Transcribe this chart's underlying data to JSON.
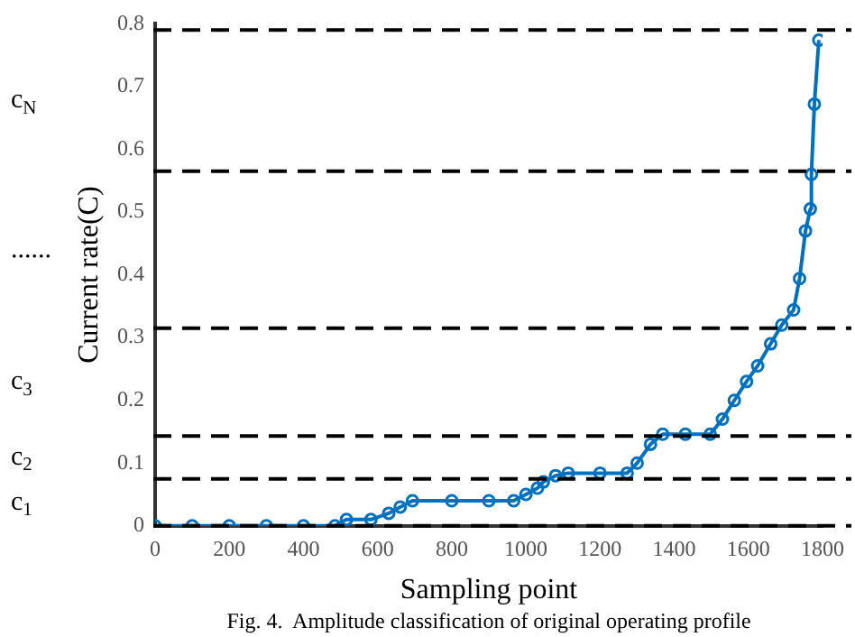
{
  "chart_data": {
    "type": "line",
    "xlabel": "Sampling point",
    "ylabel": "Current rate(C)",
    "x": [
      0,
      100,
      200,
      300,
      400,
      485,
      516,
      582,
      630,
      661,
      694,
      800,
      900,
      967,
      1000,
      1031,
      1047,
      1080,
      1114,
      1200,
      1273,
      1300,
      1336,
      1369,
      1430,
      1497,
      1530,
      1562,
      1595,
      1625,
      1660,
      1690,
      1722,
      1738,
      1754,
      1767,
      1770,
      1778,
      1790
    ],
    "series": [
      {
        "color": "#0070c0",
        "values": [
          0,
          0,
          0,
          0,
          0,
          0,
          0.01,
          0.01,
          0.02,
          0.03,
          0.04,
          0.04,
          0.04,
          0.04,
          0.05,
          0.06,
          0.07,
          0.08,
          0.084,
          0.084,
          0.084,
          0.1,
          0.13,
          0.146,
          0.146,
          0.146,
          0.17,
          0.2,
          0.23,
          0.255,
          0.29,
          0.32,
          0.344,
          0.394,
          0.47,
          0.505,
          0.56,
          0.672,
          0.774
        ]
      }
    ],
    "xlim": [
      0,
      1800
    ],
    "xticks": [
      0,
      200,
      400,
      600,
      800,
      1000,
      1200,
      1400,
      1600,
      1800
    ],
    "ylim": [
      0,
      0.8
    ],
    "yticks": [
      0,
      0.1,
      0.2,
      0.3,
      0.4,
      0.5,
      0.6,
      0.7,
      0.8
    ],
    "marker": "circle",
    "line_style": "solid",
    "grid": false,
    "legend": false,
    "ref_lines": [
      {
        "axis": "y",
        "value": 0.0,
        "color": "#000000",
        "line_style": "dashed"
      },
      {
        "axis": "y",
        "value": 0.075,
        "color": "#000000",
        "line_style": "dashed"
      },
      {
        "axis": "y",
        "value": 0.143,
        "color": "#000000",
        "line_style": "dashed"
      },
      {
        "axis": "y",
        "value": 0.315,
        "color": "#000000",
        "line_style": "dashed"
      },
      {
        "axis": "y",
        "value": 0.565,
        "color": "#000000",
        "line_style": "dashed"
      },
      {
        "axis": "y",
        "value": 0.79,
        "color": "#000000",
        "line_style": "dashed"
      }
    ],
    "annotations": [
      "c$_{1}$",
      "c$_{2}$",
      "c$_{3}$",
      "......",
      "c$_{N}$",
      "Fig. 4.  Amplitude classification of original operating profile"
    ]
  }
}
